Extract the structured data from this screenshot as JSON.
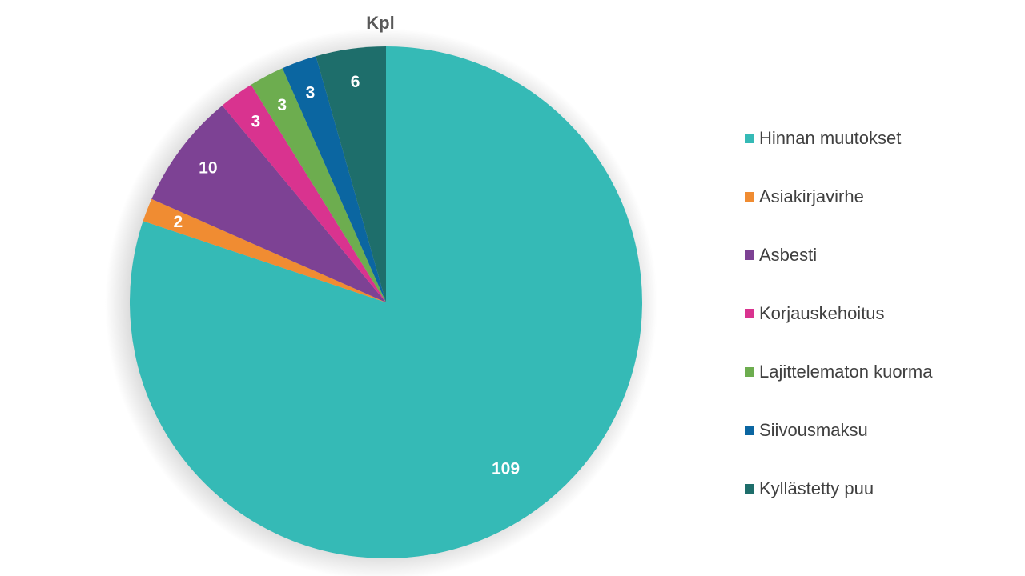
{
  "chart_data": {
    "type": "pie",
    "title": "Kpl",
    "categories": [
      "Hinnan muutokset",
      "Asiakirjavirhe",
      "Asbesti",
      "Korjauskehoitus",
      "Lajittelematon kuorma",
      "Siivousmaksu",
      "Kyllästetty puu"
    ],
    "values": [
      109,
      2,
      10,
      3,
      3,
      3,
      6
    ],
    "colors": [
      "#35BAB6",
      "#F08C32",
      "#7D4294",
      "#D9338F",
      "#6DAD4F",
      "#0B66A1",
      "#1E6E6B"
    ],
    "start_angle": "12 o'clock",
    "direction": "clockwise",
    "legend_position": "right",
    "data_labels": true
  }
}
